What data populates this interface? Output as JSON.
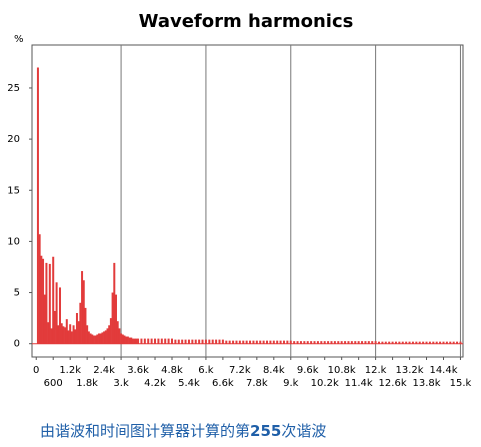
{
  "chart_data": {
    "type": "bar",
    "title": "Waveform harmonics",
    "y_label": "%",
    "color": "#e23b3b",
    "x": [
      60,
      120,
      180,
      240,
      300,
      360,
      420,
      480,
      540,
      600,
      660,
      720,
      780,
      840,
      900,
      960,
      1020,
      1080,
      1140,
      1200,
      1260,
      1320,
      1380,
      1440,
      1500,
      1560,
      1620,
      1680,
      1740,
      1800,
      1860,
      1920,
      1980,
      2040,
      2100,
      2160,
      2220,
      2280,
      2340,
      2400,
      2460,
      2520,
      2580,
      2640,
      2700,
      2760,
      2820,
      2880,
      2940,
      3000,
      3060,
      3120,
      3180,
      3240,
      3300,
      3360,
      3420,
      3480,
      3540,
      3600,
      3720,
      3840,
      3960,
      4080,
      4200,
      4320,
      4440,
      4560,
      4680,
      4800,
      4920,
      5040,
      5160,
      5280,
      5400,
      5520,
      5640,
      5760,
      5880,
      6000,
      6120,
      6240,
      6360,
      6480,
      6600,
      6720,
      6840,
      6960,
      7080,
      7200,
      7320,
      7440,
      7560,
      7680,
      7800,
      7920,
      8040,
      8160,
      8280,
      8400,
      8520,
      8640,
      8760,
      8880,
      9000,
      9120,
      9240,
      9360,
      9480,
      9600,
      9720,
      9840,
      9960,
      10080,
      10200,
      10320,
      10440,
      10560,
      10680,
      10800,
      10920,
      11040,
      11160,
      11280,
      11400,
      11520,
      11640,
      11760,
      11880,
      12000,
      12120,
      12240,
      12360,
      12480,
      12600,
      12720,
      12840,
      12960,
      13080,
      13200,
      13320,
      13440,
      13560,
      13680,
      13800,
      13920,
      14040,
      14160,
      14280,
      14400,
      14520,
      14640,
      14760,
      14880,
      15000
    ],
    "values": [
      27,
      10.7,
      8.6,
      8.3,
      4.8,
      7.9,
      2.1,
      7.8,
      1.5,
      8.5,
      3.2,
      6.0,
      1.8,
      5.5,
      2.0,
      1.7,
      1.6,
      2.4,
      1.3,
      1.9,
      1.2,
      1.8,
      1.4,
      3.0,
      2.2,
      4.0,
      7.1,
      6.2,
      3.5,
      1.8,
      1.2,
      1.0,
      0.9,
      0.8,
      0.8,
      0.9,
      1.0,
      1.0,
      1.1,
      1.2,
      1.3,
      1.5,
      1.8,
      2.5,
      5.0,
      7.9,
      4.8,
      2.2,
      1.5,
      1.0,
      0.9,
      0.8,
      0.7,
      0.7,
      0.6,
      0.6,
      0.5,
      0.5,
      0.5,
      0.5,
      0.5,
      0.5,
      0.5,
      0.5,
      0.5,
      0.5,
      0.5,
      0.5,
      0.5,
      0.5,
      0.4,
      0.4,
      0.4,
      0.4,
      0.4,
      0.4,
      0.4,
      0.4,
      0.4,
      0.4,
      0.4,
      0.4,
      0.4,
      0.4,
      0.4,
      0.3,
      0.3,
      0.3,
      0.3,
      0.3,
      0.3,
      0.3,
      0.3,
      0.3,
      0.3,
      0.3,
      0.3,
      0.3,
      0.3,
      0.3,
      0.3,
      0.3,
      0.3,
      0.3,
      0.3,
      0.25,
      0.25,
      0.25,
      0.25,
      0.25,
      0.25,
      0.25,
      0.25,
      0.25,
      0.25,
      0.25,
      0.25,
      0.25,
      0.25,
      0.25,
      0.25,
      0.25,
      0.25,
      0.25,
      0.25,
      0.25,
      0.25,
      0.25,
      0.25,
      0.25,
      0.2,
      0.2,
      0.2,
      0.2,
      0.2,
      0.2,
      0.2,
      0.2,
      0.2,
      0.2,
      0.2,
      0.2,
      0.2,
      0.2,
      0.2,
      0.2,
      0.2,
      0.2,
      0.2,
      0.2,
      0.2,
      0.2,
      0.2,
      0.2,
      0.2
    ],
    "xlim": [
      -150,
      15090
    ],
    "ylim": [
      -1.3,
      29.2
    ],
    "yticks": [
      0,
      5,
      10,
      15,
      20,
      25
    ],
    "xticks": [
      0,
      600,
      {
        "value": 1200,
        "label": "1.2k"
      },
      {
        "value": 1800,
        "label": "1.8k"
      },
      {
        "value": 2400,
        "label": "2.4k"
      },
      {
        "value": 3000,
        "label": "3.k"
      },
      {
        "value": 3600,
        "label": "3.6k"
      },
      {
        "value": 4200,
        "label": "4.2k"
      },
      {
        "value": 4800,
        "label": "4.8k"
      },
      {
        "value": 5400,
        "label": "5.4k"
      },
      {
        "value": 6000,
        "label": "6.k"
      },
      {
        "value": 6600,
        "label": "6.6k"
      },
      {
        "value": 7200,
        "label": "7.2k"
      },
      {
        "value": 7800,
        "label": "7.8k"
      },
      {
        "value": 8400,
        "label": "8.4k"
      },
      {
        "value": 9000,
        "label": "9.k"
      },
      {
        "value": 9600,
        "label": "9.6k"
      },
      {
        "value": 10200,
        "label": "10.2k"
      },
      {
        "value": 10800,
        "label": "10.8k"
      },
      {
        "value": 11400,
        "label": "11.4k"
      },
      {
        "value": 12000,
        "label": "12.k"
      },
      {
        "value": 12600,
        "label": "12.6k"
      },
      {
        "value": 13200,
        "label": "13.2k"
      },
      {
        "value": 13800,
        "label": "13.8k"
      },
      {
        "value": 14400,
        "label": "14.4k"
      },
      {
        "value": 15000,
        "label": "15.k"
      }
    ]
  },
  "caption": {
    "before": "由谐波和时间图计算器计算的第",
    "number": "255",
    "after": "次谐波"
  }
}
